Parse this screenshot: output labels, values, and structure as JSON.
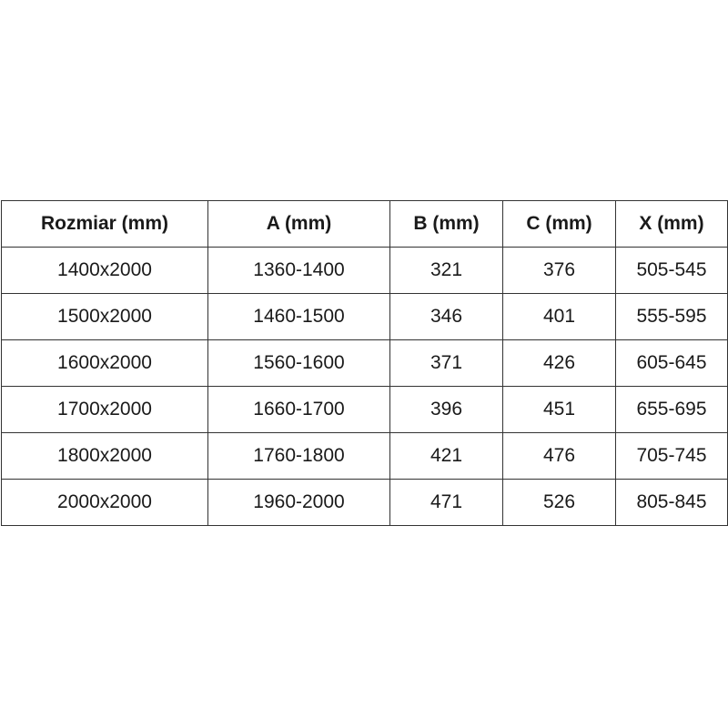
{
  "table": {
    "headers": [
      "Rozmiar (mm)",
      "A (mm)",
      "B (mm)",
      "C (mm)",
      "X (mm)"
    ],
    "rows": [
      [
        "1400x2000",
        "1360-1400",
        "321",
        "376",
        "505-545"
      ],
      [
        "1500x2000",
        "1460-1500",
        "346",
        "401",
        "555-595"
      ],
      [
        "1600x2000",
        "1560-1600",
        "371",
        "426",
        "605-645"
      ],
      [
        "1700x2000",
        "1660-1700",
        "396",
        "451",
        "655-695"
      ],
      [
        "1800x2000",
        "1760-1800",
        "421",
        "476",
        "705-745"
      ],
      [
        "2000x2000",
        "1960-2000",
        "471",
        "526",
        "805-845"
      ]
    ]
  }
}
